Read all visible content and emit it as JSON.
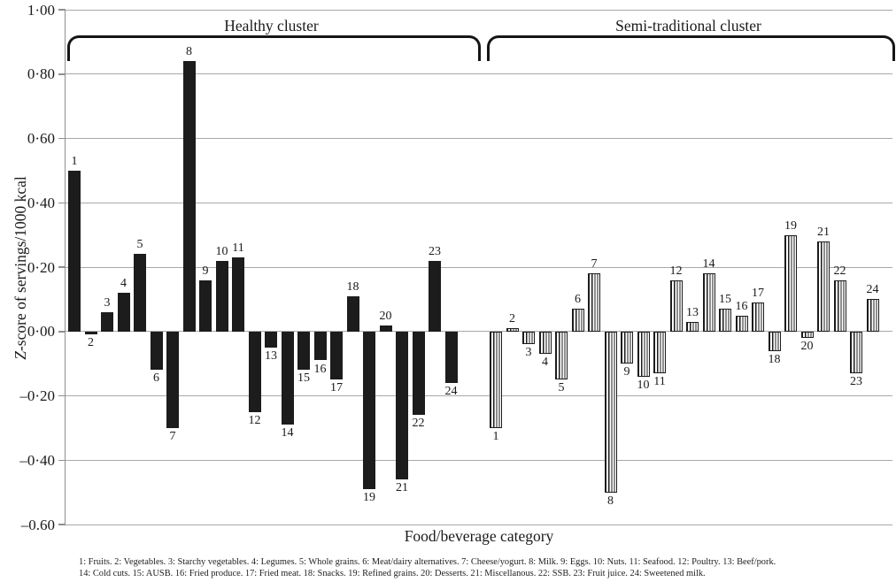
{
  "figure": {
    "y_axis_title_z": "Z",
    "y_axis_title_rest": "-score of servings/1000 kcal"
  },
  "chart_data": {
    "type": "bar",
    "title": "",
    "xlabel": "Food/beverage category",
    "ylabel": "Z-score of servings/1000 kcal",
    "ylim": [
      -0.6,
      1.0
    ],
    "grid": true,
    "legend_position": "top-braces",
    "ytick_values": [
      1.0,
      0.8,
      0.6,
      0.4,
      0.2,
      0.0,
      -0.2,
      -0.4,
      -0.6
    ],
    "ytick_labels": [
      "1·00",
      "0·80",
      "0·60",
      "0·40",
      "0·20",
      "0·00",
      "–0·20",
      "–0·40",
      "–0.60"
    ],
    "categories": [
      "1",
      "2",
      "3",
      "4",
      "5",
      "6",
      "7",
      "8",
      "9",
      "10",
      "11",
      "12",
      "13",
      "14",
      "15",
      "16",
      "17",
      "18",
      "19",
      "20",
      "21",
      "22",
      "23",
      "24"
    ],
    "series": [
      {
        "name": "Healthy cluster",
        "pattern": "solid-black",
        "values": [
          0.5,
          -0.01,
          0.06,
          0.12,
          0.24,
          -0.12,
          -0.3,
          0.84,
          0.16,
          0.22,
          0.23,
          -0.25,
          -0.05,
          -0.29,
          -0.12,
          -0.09,
          -0.15,
          0.11,
          -0.49,
          0.02,
          -0.46,
          -0.26,
          0.22,
          -0.16
        ]
      },
      {
        "name": "Semi-traditional cluster",
        "pattern": "vertical-stripes",
        "values": [
          -0.3,
          0.01,
          -0.04,
          -0.07,
          -0.15,
          0.07,
          0.18,
          -0.5,
          -0.1,
          -0.14,
          -0.13,
          0.16,
          0.03,
          0.18,
          0.07,
          0.05,
          0.09,
          -0.06,
          0.3,
          -0.02,
          0.28,
          0.16,
          -0.13,
          0.1
        ]
      }
    ],
    "footnotes": [
      "1: Fruits. 2: Vegetables. 3: Starchy vegetables. 4: Legumes. 5: Whole grains. 6: Meat/dairy alternatives. 7: Cheese/yogurt. 8: Milk. 9: Eggs. 10: Nuts. 11: Seafood. 12: Poultry. 13: Beef/pork.",
      "14: Cold cuts. 15: AUSB. 16: Fried produce. 17: Fried meat. 18: Snacks. 19: Refined grains. 20: Desserts. 21: Miscellanous. 22: SSB. 23: Fruit juice. 24: Sweetened milk."
    ]
  },
  "colors": {
    "background": "#ffffff",
    "bar_fill": "#1c1c1c",
    "gridline": "#a9a9a9",
    "axis": "#8f8f8f",
    "text": "#1a1a1a"
  }
}
